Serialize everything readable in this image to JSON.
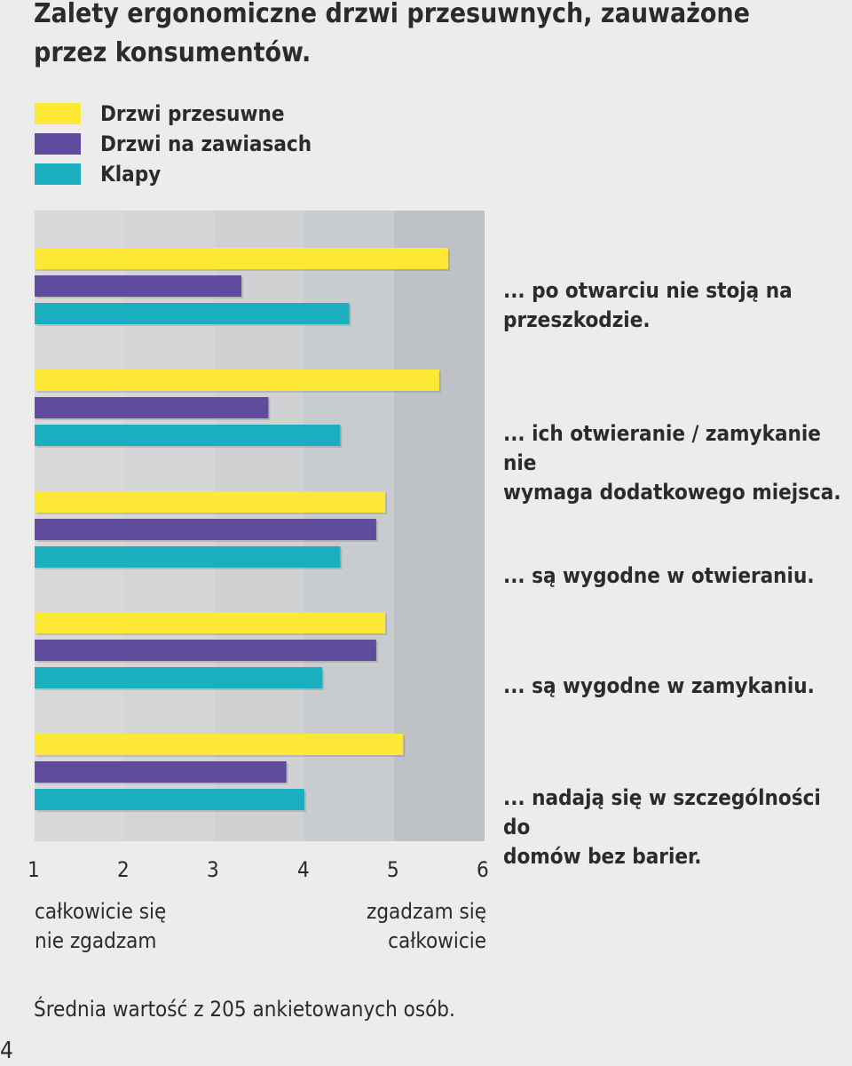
{
  "title": "Zalety ergonomiczne drzwi przesuwnych, zauważone przez konsumentów.",
  "footnote": "Średnia wartość z 205 ankietowanych osób.",
  "page_number": "4",
  "axis_notes": {
    "low": "całkowicie się\nnie zgadzam",
    "high": "zgadzam się\ncałkowicie"
  },
  "colors": {
    "series_1": "#fde935",
    "series_2": "#604c9c",
    "series_3": "#1aaebf",
    "plot_bands": [
      "#d8d8d8",
      "#d4d5d7",
      "#cfd1d3",
      "#c9cccf",
      "#bec2c6"
    ],
    "background": "#ececec"
  },
  "chart_data": {
    "type": "bar",
    "orientation": "horizontal",
    "title": "Zalety ergonomiczne drzwi przesuwnych, zauważone przez konsumentów.",
    "categories": [
      "... po otwarciu nie stoją na\nprzeszkodzie.",
      "... ich otwieranie / zamykanie nie\nwymaga dodatkowego miejsca.",
      "... są wygodne w otwieraniu.",
      "... są wygodne w zamykaniu.",
      "... nadają się w szczególności do\ndomów bez barier."
    ],
    "series": [
      {
        "name": "Drzwi przesuwne",
        "color": "#fde935",
        "values": [
          5.6,
          5.5,
          4.9,
          4.9,
          5.1
        ]
      },
      {
        "name": "Drzwi na zawiasach",
        "color": "#604c9c",
        "values": [
          3.3,
          3.6,
          4.8,
          4.8,
          3.8
        ]
      },
      {
        "name": "Klapy",
        "color": "#1aaebf",
        "values": [
          4.5,
          4.4,
          4.4,
          4.2,
          4.0
        ]
      }
    ],
    "xlim": [
      1,
      6
    ],
    "xticks": [
      1,
      2,
      3,
      4,
      5,
      6
    ],
    "xtick_labels": [
      "1",
      "2",
      "3",
      "4",
      "5",
      "6"
    ],
    "legend_position": "top-left",
    "grid": "vertical bands"
  }
}
